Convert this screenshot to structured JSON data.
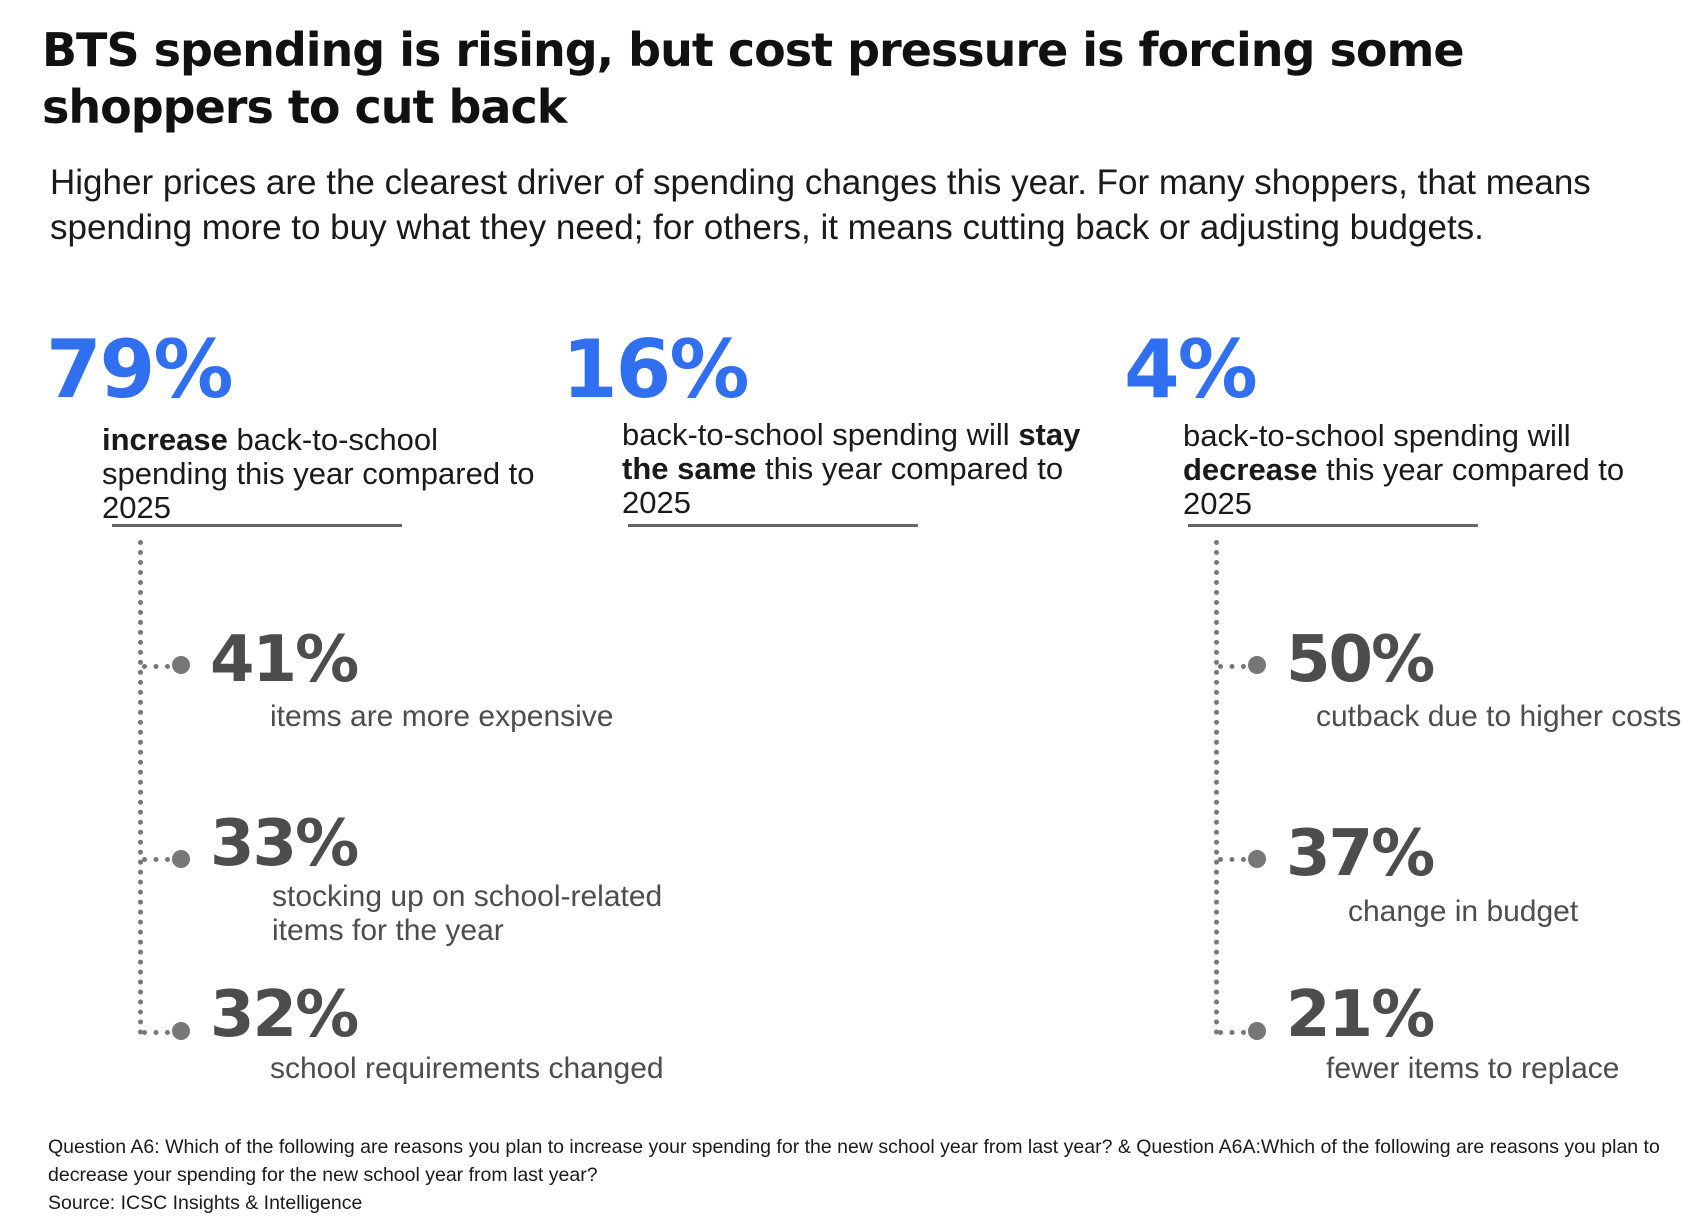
{
  "title": "BTS spending is rising, but cost pressure is forcing some shoppers to cut back",
  "subtitle": "Higher prices are the clearest driver of spending changes this year. For many shoppers, that means spending more to buy what they need; for others, it means cutting back or adjusting budgets.",
  "accent_color": "#2f6ff0",
  "stats": [
    {
      "pct": "79%",
      "bold": "increase",
      "rest": " back-to-school spending this year compared to 2025",
      "sub": [
        {
          "pct": "41%",
          "label": "items are more expensive"
        },
        {
          "pct": "33%",
          "label": "stocking up on school-related items for the year"
        },
        {
          "pct": "32%",
          "label": "school requirements changed"
        }
      ]
    },
    {
      "pct": "16%",
      "pre": "back-to-school spending will ",
      "bold": "stay the same",
      "rest": " this year compared to 2025"
    },
    {
      "pct": "4%",
      "pre": "back-to-school spending will ",
      "bold": "decrease",
      "rest": " this year compared to 2025",
      "sub": [
        {
          "pct": "50%",
          "label": "cutback due to higher costs"
        },
        {
          "pct": "37%",
          "label": "change in budget"
        },
        {
          "pct": "21%",
          "label": "fewer items to replace"
        }
      ]
    }
  ],
  "footnote": {
    "question": "Question A6: Which of the following are reasons you plan to increase your spending for the new school year from last year? & Question A6A:Which of the following are reasons you plan to decrease your spending for the new school year from last year?",
    "source": "Source: ICSC Insights & Intelligence"
  }
}
